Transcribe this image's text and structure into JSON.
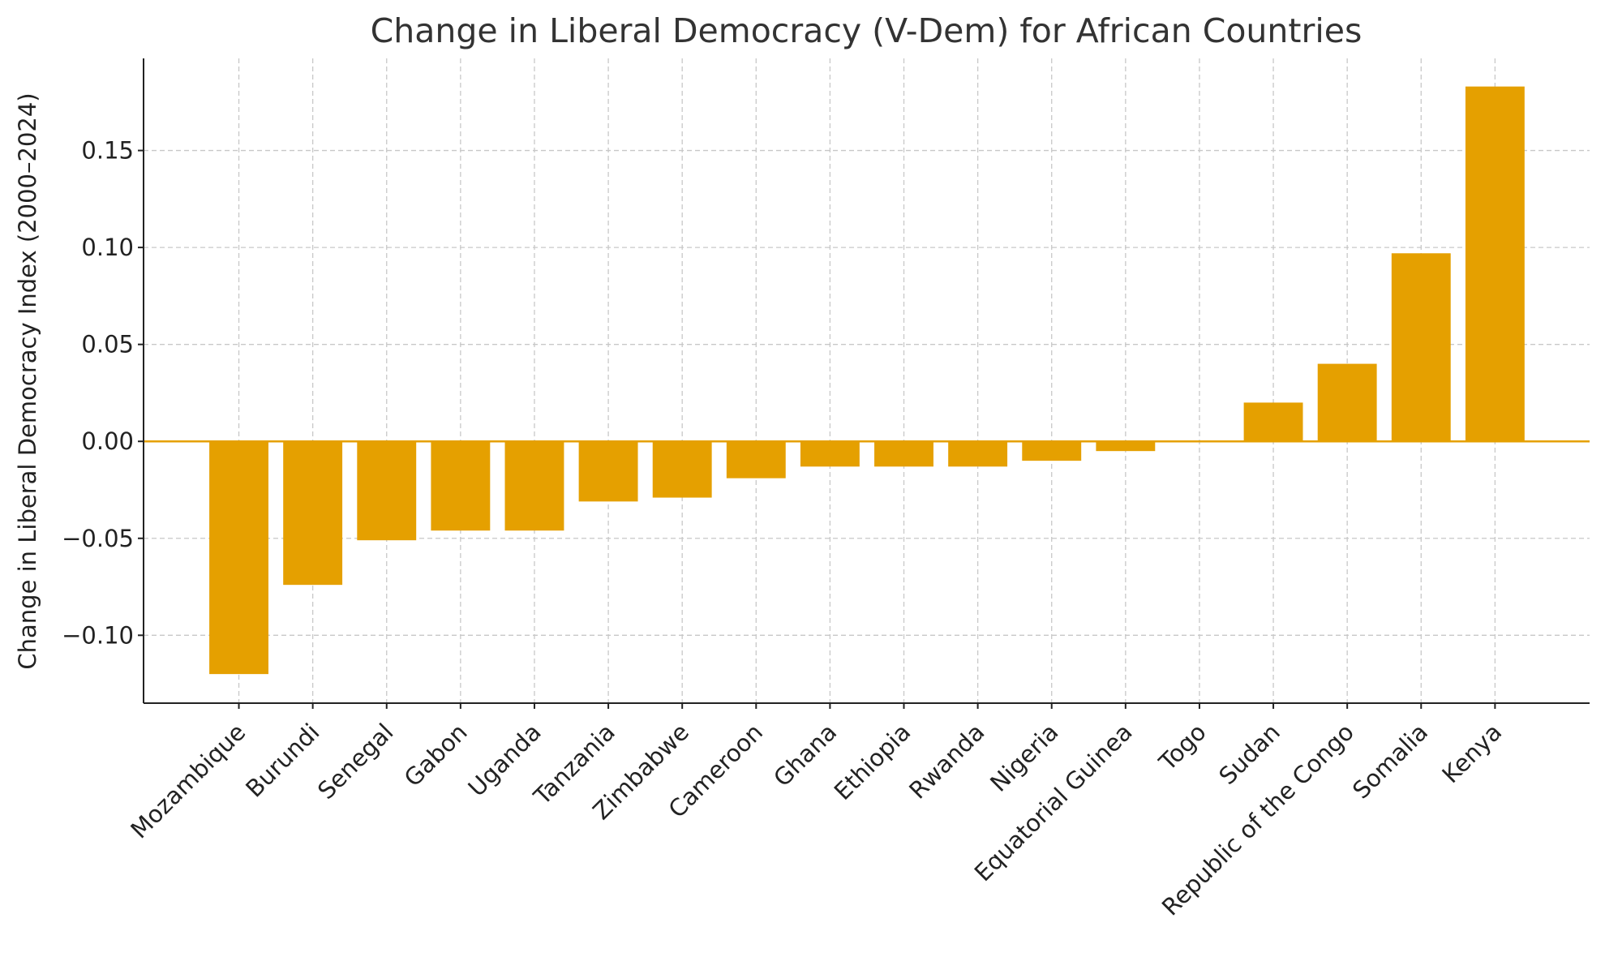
{
  "chart_data": {
    "type": "bar",
    "title": "Change in Liberal Democracy (V-Dem) for African Countries",
    "xlabel": "",
    "ylabel": "Change in Liberal Democracy Index (2000–2024)",
    "categories": [
      "Mozambique",
      "Burundi",
      "Senegal",
      "Gabon",
      "Uganda",
      "Tanzania",
      "Zimbabwe",
      "Cameroon",
      "Ghana",
      "Ethiopia",
      "Rwanda",
      "Nigeria",
      "Equatorial Guinea",
      "Togo",
      "Sudan",
      "Republic of the Congo",
      "Somalia",
      "Kenya"
    ],
    "values": [
      -0.12,
      -0.074,
      -0.051,
      -0.046,
      -0.046,
      -0.031,
      -0.029,
      -0.019,
      -0.013,
      -0.013,
      -0.013,
      -0.01,
      -0.005,
      0.0,
      0.02,
      0.04,
      0.097,
      0.183
    ],
    "ylim": [
      -0.135,
      0.1975
    ],
    "yticks": [
      -0.1,
      -0.05,
      0.0,
      0.05,
      0.1,
      0.15
    ],
    "ytick_labels": [
      "−0.10",
      "−0.05",
      "0.00",
      "0.05",
      "0.10",
      "0.15"
    ],
    "grid": true,
    "bar_color": "#E5A000",
    "zero_line_color": "#E5A000"
  }
}
